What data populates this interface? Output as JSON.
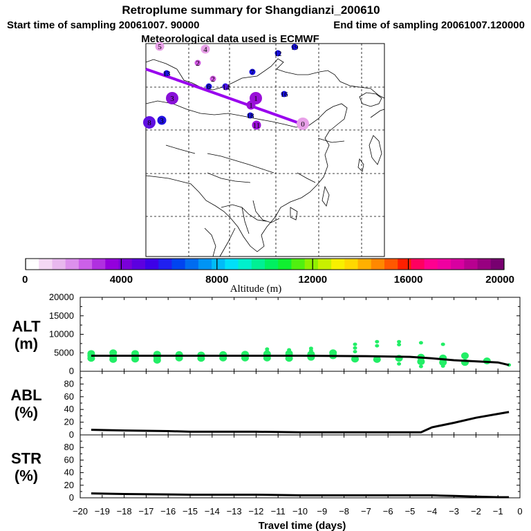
{
  "header": {
    "title": "Retroplume summary for Shangdianzi_200610",
    "start_label": "Start time of sampling 20061007. 90000",
    "end_label": "End time of sampling 20061007.120000",
    "met_label": "Meteorological data used is ECMWF"
  },
  "colors": {
    "frame": "#000000",
    "trajectory": "#9900ee",
    "points": "#22ee66",
    "line": "#000000"
  },
  "map": {
    "trajectory_labels": [
      {
        "label": "0",
        "size": "large",
        "color": "#e8a0e8"
      },
      {
        "label": "1",
        "size": "large",
        "color": "#9a10d8"
      },
      {
        "label": "1",
        "size": "medium",
        "color": "#9a10d8"
      },
      {
        "label": "2",
        "size": "small",
        "color": "#cc55dd"
      },
      {
        "label": "2",
        "size": "small",
        "color": "#cc55dd"
      },
      {
        "label": "3",
        "size": "large",
        "color": "#8810d8"
      },
      {
        "label": "3",
        "size": "medium",
        "color": "#2010e0"
      },
      {
        "label": "4",
        "size": "medium",
        "color": "#e8a0e8"
      },
      {
        "label": "5",
        "size": "medium",
        "color": "#e8a0e8"
      },
      {
        "label": "6",
        "size": "small",
        "color": "#1810e0"
      },
      {
        "label": "7",
        "size": "small",
        "color": "#1810e0"
      },
      {
        "label": "8",
        "size": "large",
        "color": "#6010e0"
      },
      {
        "label": "9",
        "size": "small",
        "color": "#1810e0"
      },
      {
        "label": "11",
        "size": "medium",
        "color": "#9a10d8"
      },
      {
        "label": "12",
        "size": "small",
        "color": "#1810e0"
      },
      {
        "label": "13",
        "size": "small",
        "color": "#1810e0"
      },
      {
        "label": "14",
        "size": "small",
        "color": "#5010e0"
      },
      {
        "label": "16",
        "size": "small",
        "color": "#1810e0"
      },
      {
        "label": "18",
        "size": "small",
        "color": "#1810e0"
      },
      {
        "label": "19",
        "size": "small",
        "color": "#1810e0"
      }
    ]
  },
  "colorbar": {
    "axis_label": "Altitude (m)",
    "ticks": [
      "0",
      "4000",
      "8000",
      "12000",
      "16000",
      "20000"
    ],
    "colors": [
      "#ffffff",
      "#f4d8f4",
      "#e8b8ee",
      "#dc90ec",
      "#cc60e8",
      "#b030e0",
      "#9400dc",
      "#7a00d8",
      "#5c00e0",
      "#3d00e8",
      "#2020f0",
      "#0044f0",
      "#006cf0",
      "#0094f4",
      "#00bcf8",
      "#00e0f8",
      "#00f0cc",
      "#00f094",
      "#00f060",
      "#10f030",
      "#50f010",
      "#90f000",
      "#c8f000",
      "#f8f000",
      "#ffd800",
      "#ffb000",
      "#ff8800",
      "#ff5800",
      "#ff2000",
      "#ff0060",
      "#ff0090",
      "#f000a0",
      "#d800a0",
      "#b80090",
      "#980080",
      "#780070"
    ]
  },
  "chart_data": [
    {
      "type": "scatter",
      "panel": "ALT",
      "ylabel": "ALT (m)",
      "ylim": [
        0,
        20000
      ],
      "yticks": [
        "20000",
        "15000",
        "10000",
        "5000",
        "0"
      ],
      "xlim": [
        -20,
        0
      ],
      "line": {
        "x": [
          -19.5,
          -15,
          -10,
          -7,
          -5,
          -4,
          -3,
          -2,
          -1,
          -0.5
        ],
        "y": [
          4200,
          4200,
          4200,
          4100,
          3900,
          3500,
          3000,
          2700,
          2400,
          1700
        ]
      },
      "points": [
        {
          "x": -19.5,
          "y": 4200
        },
        {
          "x": -19.5,
          "y": 3500
        },
        {
          "x": -19.5,
          "y": 4800
        },
        {
          "x": -18.5,
          "y": 4000
        },
        {
          "x": -18.5,
          "y": 3200
        },
        {
          "x": -18.5,
          "y": 5000
        },
        {
          "x": -17.5,
          "y": 4100
        },
        {
          "x": -17.5,
          "y": 3300
        },
        {
          "x": -17.5,
          "y": 4800
        },
        {
          "x": -16.5,
          "y": 3800
        },
        {
          "x": -16.5,
          "y": 3000
        },
        {
          "x": -16.5,
          "y": 4600
        },
        {
          "x": -15.5,
          "y": 3600
        },
        {
          "x": -15.5,
          "y": 4500
        },
        {
          "x": -14.5,
          "y": 3500
        },
        {
          "x": -14.5,
          "y": 4400
        },
        {
          "x": -13.5,
          "y": 3600
        },
        {
          "x": -13.5,
          "y": 4500
        },
        {
          "x": -12.5,
          "y": 3600
        },
        {
          "x": -12.5,
          "y": 4600
        },
        {
          "x": -11.5,
          "y": 3600
        },
        {
          "x": -11.5,
          "y": 4700
        },
        {
          "x": -11.5,
          "y": 5400
        },
        {
          "x": -11.5,
          "y": 6000
        },
        {
          "x": -10.5,
          "y": 3500
        },
        {
          "x": -10.5,
          "y": 4800
        },
        {
          "x": -10.5,
          "y": 5800
        },
        {
          "x": -9.5,
          "y": 3800
        },
        {
          "x": -9.5,
          "y": 4600
        },
        {
          "x": -9.5,
          "y": 5600
        },
        {
          "x": -9.5,
          "y": 6200
        },
        {
          "x": -8.5,
          "y": 4200
        },
        {
          "x": -8.5,
          "y": 5000
        },
        {
          "x": -7.5,
          "y": 3300
        },
        {
          "x": -7.5,
          "y": 7300
        },
        {
          "x": -7.5,
          "y": 6300
        },
        {
          "x": -7.5,
          "y": 5300
        },
        {
          "x": -6.5,
          "y": 3200
        },
        {
          "x": -6.5,
          "y": 6900
        },
        {
          "x": -6.5,
          "y": 8000
        },
        {
          "x": -5.5,
          "y": 2000
        },
        {
          "x": -5.5,
          "y": 3500
        },
        {
          "x": -5.5,
          "y": 7200
        },
        {
          "x": -5.5,
          "y": 8000
        },
        {
          "x": -4.5,
          "y": 1300
        },
        {
          "x": -4.5,
          "y": 2600
        },
        {
          "x": -4.5,
          "y": 3800
        },
        {
          "x": -4.5,
          "y": 7700
        },
        {
          "x": -3.5,
          "y": 1400
        },
        {
          "x": -3.5,
          "y": 2400
        },
        {
          "x": -3.5,
          "y": 3600
        },
        {
          "x": -3.5,
          "y": 7300
        },
        {
          "x": -2.5,
          "y": 2400
        },
        {
          "x": -2.5,
          "y": 4200
        },
        {
          "x": -1.5,
          "y": 2800
        },
        {
          "x": -0.5,
          "y": 1700
        }
      ]
    },
    {
      "type": "line",
      "panel": "ABL",
      "ylabel": "ABL (%)",
      "ylim": [
        0,
        100
      ],
      "yticks": [
        "80",
        "60",
        "40",
        "20",
        "0"
      ],
      "xlim": [
        -20,
        0
      ],
      "x": [
        -19.5,
        -18,
        -16,
        -15,
        -12,
        -10,
        -8,
        -5,
        -4.5,
        -4,
        -3,
        -2,
        -1,
        -0.5
      ],
      "y": [
        8,
        7,
        6,
        5,
        5,
        4,
        4,
        4,
        4,
        12,
        19,
        27,
        33,
        36
      ]
    },
    {
      "type": "line",
      "panel": "STR",
      "ylabel": "STR (%)",
      "ylim": [
        0,
        100
      ],
      "yticks": [
        "80",
        "60",
        "40",
        "20",
        "0"
      ],
      "xlim": [
        -20,
        0
      ],
      "x": [
        -19.5,
        -18,
        -15,
        -12,
        -10,
        -8,
        -6,
        -4,
        -3,
        -2,
        -1,
        -0.5
      ],
      "y": [
        7,
        6,
        5,
        5,
        4,
        4,
        4,
        4,
        3,
        2,
        1,
        1
      ],
      "xlabel": "Travel time (days)",
      "xticks": [
        "−20",
        "−19",
        "−18",
        "−17",
        "−16",
        "−15",
        "−14",
        "−13",
        "−12",
        "−11",
        "−10",
        "−9",
        "−8",
        "−7",
        "−6",
        "−5",
        "−4",
        "−3",
        "−2",
        "−1",
        "0"
      ]
    }
  ]
}
